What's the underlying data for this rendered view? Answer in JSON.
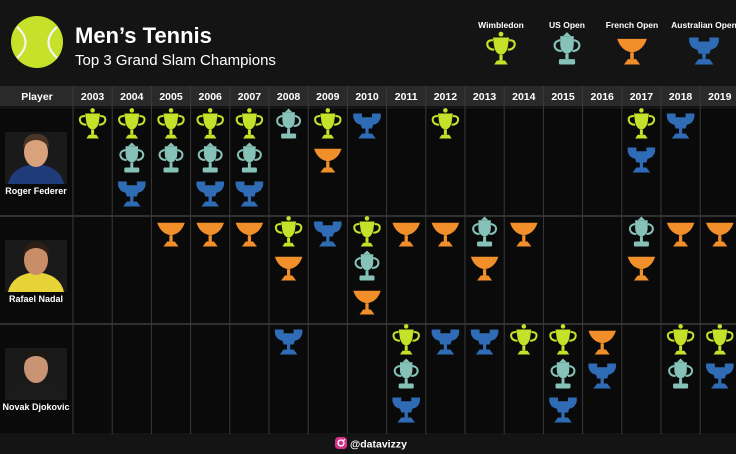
{
  "header": {
    "title": "Men’s Tennis",
    "subtitle": "Top 3 Grand Slam Champions"
  },
  "legend": [
    {
      "name": "Wimbledon",
      "color": "#c6e12a",
      "icon": "wimbledon-trophy-icon"
    },
    {
      "name": "US Open",
      "color": "#86c2b8",
      "icon": "us-open-trophy-icon"
    },
    {
      "name": "French Open",
      "color": "#f18f2b",
      "icon": "french-open-trophy-icon"
    },
    {
      "name": "Australian Open",
      "color": "#2f6cb5",
      "icon": "australian-open-trophy-icon"
    }
  ],
  "footer": {
    "handle": "@datavizzy"
  },
  "colors": {
    "background": "#141414",
    "header_bg": "#2a2a2a",
    "panel": "#0a0a0a",
    "tennis_ball": "#c6e12a"
  },
  "chart_data": {
    "type": "table",
    "column_header": "Player",
    "years": [
      "2003",
      "2004",
      "2005",
      "2006",
      "2007",
      "2008",
      "2009",
      "2010",
      "2011",
      "2012",
      "2013",
      "2014",
      "2015",
      "2016",
      "2017",
      "2018",
      "2019"
    ],
    "players": [
      {
        "name": "Roger Federer",
        "titles": {
          "2003": [
            "Wimbledon"
          ],
          "2004": [
            "Wimbledon",
            "US Open",
            "Australian Open"
          ],
          "2005": [
            "Wimbledon",
            "US Open"
          ],
          "2006": [
            "Wimbledon",
            "US Open",
            "Australian Open"
          ],
          "2007": [
            "Wimbledon",
            "US Open",
            "Australian Open"
          ],
          "2008": [
            "US Open"
          ],
          "2009": [
            "Wimbledon",
            "French Open"
          ],
          "2010": [
            "Australian Open"
          ],
          "2012": [
            "Wimbledon"
          ],
          "2017": [
            "Wimbledon",
            "Australian Open"
          ],
          "2018": [
            "Australian Open"
          ]
        }
      },
      {
        "name": "Rafael Nadal",
        "titles": {
          "2005": [
            "French Open"
          ],
          "2006": [
            "French Open"
          ],
          "2007": [
            "French Open"
          ],
          "2008": [
            "Wimbledon",
            "French Open"
          ],
          "2009": [
            "Australian Open"
          ],
          "2010": [
            "Wimbledon",
            "US Open",
            "French Open"
          ],
          "2011": [
            "French Open"
          ],
          "2012": [
            "French Open"
          ],
          "2013": [
            "US Open",
            "French Open"
          ],
          "2014": [
            "French Open"
          ],
          "2017": [
            "US Open",
            "French Open"
          ],
          "2018": [
            "French Open"
          ],
          "2019": [
            "French Open"
          ]
        }
      },
      {
        "name": "Novak Djokovic",
        "titles": {
          "2008": [
            "Australian Open"
          ],
          "2011": [
            "Wimbledon",
            "US Open",
            "Australian Open"
          ],
          "2012": [
            "Australian Open"
          ],
          "2013": [
            "Australian Open"
          ],
          "2014": [
            "Wimbledon"
          ],
          "2015": [
            "Wimbledon",
            "US Open",
            "Australian Open"
          ],
          "2016": [
            "French Open",
            "Australian Open"
          ],
          "2018": [
            "Wimbledon",
            "US Open"
          ],
          "2019": [
            "Wimbledon",
            "Australian Open"
          ]
        }
      }
    ]
  }
}
